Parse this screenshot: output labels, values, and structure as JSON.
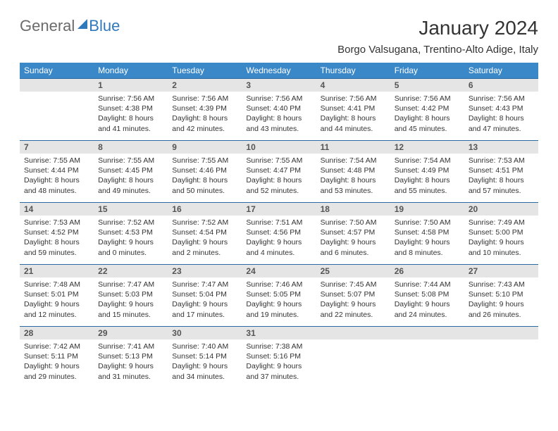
{
  "brand": {
    "part1": "General",
    "part2": "Blue"
  },
  "title": "January 2024",
  "location": "Borgo Valsugana, Trentino-Alto Adige, Italy",
  "colors": {
    "header_bg": "#3b88c9",
    "header_text": "#ffffff",
    "daynum_bg": "#e5e5e5",
    "row_border": "#2a6aa3",
    "brand_gray": "#6b6b6b",
    "brand_blue": "#2f79bd"
  },
  "weekdays": [
    "Sunday",
    "Monday",
    "Tuesday",
    "Wednesday",
    "Thursday",
    "Friday",
    "Saturday"
  ],
  "weeks": [
    [
      {
        "blank": true
      },
      {
        "n": "1",
        "sunrise": "Sunrise: 7:56 AM",
        "sunset": "Sunset: 4:38 PM",
        "dl1": "Daylight: 8 hours",
        "dl2": "and 41 minutes."
      },
      {
        "n": "2",
        "sunrise": "Sunrise: 7:56 AM",
        "sunset": "Sunset: 4:39 PM",
        "dl1": "Daylight: 8 hours",
        "dl2": "and 42 minutes."
      },
      {
        "n": "3",
        "sunrise": "Sunrise: 7:56 AM",
        "sunset": "Sunset: 4:40 PM",
        "dl1": "Daylight: 8 hours",
        "dl2": "and 43 minutes."
      },
      {
        "n": "4",
        "sunrise": "Sunrise: 7:56 AM",
        "sunset": "Sunset: 4:41 PM",
        "dl1": "Daylight: 8 hours",
        "dl2": "and 44 minutes."
      },
      {
        "n": "5",
        "sunrise": "Sunrise: 7:56 AM",
        "sunset": "Sunset: 4:42 PM",
        "dl1": "Daylight: 8 hours",
        "dl2": "and 45 minutes."
      },
      {
        "n": "6",
        "sunrise": "Sunrise: 7:56 AM",
        "sunset": "Sunset: 4:43 PM",
        "dl1": "Daylight: 8 hours",
        "dl2": "and 47 minutes."
      }
    ],
    [
      {
        "n": "7",
        "sunrise": "Sunrise: 7:55 AM",
        "sunset": "Sunset: 4:44 PM",
        "dl1": "Daylight: 8 hours",
        "dl2": "and 48 minutes."
      },
      {
        "n": "8",
        "sunrise": "Sunrise: 7:55 AM",
        "sunset": "Sunset: 4:45 PM",
        "dl1": "Daylight: 8 hours",
        "dl2": "and 49 minutes."
      },
      {
        "n": "9",
        "sunrise": "Sunrise: 7:55 AM",
        "sunset": "Sunset: 4:46 PM",
        "dl1": "Daylight: 8 hours",
        "dl2": "and 50 minutes."
      },
      {
        "n": "10",
        "sunrise": "Sunrise: 7:55 AM",
        "sunset": "Sunset: 4:47 PM",
        "dl1": "Daylight: 8 hours",
        "dl2": "and 52 minutes."
      },
      {
        "n": "11",
        "sunrise": "Sunrise: 7:54 AM",
        "sunset": "Sunset: 4:48 PM",
        "dl1": "Daylight: 8 hours",
        "dl2": "and 53 minutes."
      },
      {
        "n": "12",
        "sunrise": "Sunrise: 7:54 AM",
        "sunset": "Sunset: 4:49 PM",
        "dl1": "Daylight: 8 hours",
        "dl2": "and 55 minutes."
      },
      {
        "n": "13",
        "sunrise": "Sunrise: 7:53 AM",
        "sunset": "Sunset: 4:51 PM",
        "dl1": "Daylight: 8 hours",
        "dl2": "and 57 minutes."
      }
    ],
    [
      {
        "n": "14",
        "sunrise": "Sunrise: 7:53 AM",
        "sunset": "Sunset: 4:52 PM",
        "dl1": "Daylight: 8 hours",
        "dl2": "and 59 minutes."
      },
      {
        "n": "15",
        "sunrise": "Sunrise: 7:52 AM",
        "sunset": "Sunset: 4:53 PM",
        "dl1": "Daylight: 9 hours",
        "dl2": "and 0 minutes."
      },
      {
        "n": "16",
        "sunrise": "Sunrise: 7:52 AM",
        "sunset": "Sunset: 4:54 PM",
        "dl1": "Daylight: 9 hours",
        "dl2": "and 2 minutes."
      },
      {
        "n": "17",
        "sunrise": "Sunrise: 7:51 AM",
        "sunset": "Sunset: 4:56 PM",
        "dl1": "Daylight: 9 hours",
        "dl2": "and 4 minutes."
      },
      {
        "n": "18",
        "sunrise": "Sunrise: 7:50 AM",
        "sunset": "Sunset: 4:57 PM",
        "dl1": "Daylight: 9 hours",
        "dl2": "and 6 minutes."
      },
      {
        "n": "19",
        "sunrise": "Sunrise: 7:50 AM",
        "sunset": "Sunset: 4:58 PM",
        "dl1": "Daylight: 9 hours",
        "dl2": "and 8 minutes."
      },
      {
        "n": "20",
        "sunrise": "Sunrise: 7:49 AM",
        "sunset": "Sunset: 5:00 PM",
        "dl1": "Daylight: 9 hours",
        "dl2": "and 10 minutes."
      }
    ],
    [
      {
        "n": "21",
        "sunrise": "Sunrise: 7:48 AM",
        "sunset": "Sunset: 5:01 PM",
        "dl1": "Daylight: 9 hours",
        "dl2": "and 12 minutes."
      },
      {
        "n": "22",
        "sunrise": "Sunrise: 7:47 AM",
        "sunset": "Sunset: 5:03 PM",
        "dl1": "Daylight: 9 hours",
        "dl2": "and 15 minutes."
      },
      {
        "n": "23",
        "sunrise": "Sunrise: 7:47 AM",
        "sunset": "Sunset: 5:04 PM",
        "dl1": "Daylight: 9 hours",
        "dl2": "and 17 minutes."
      },
      {
        "n": "24",
        "sunrise": "Sunrise: 7:46 AM",
        "sunset": "Sunset: 5:05 PM",
        "dl1": "Daylight: 9 hours",
        "dl2": "and 19 minutes."
      },
      {
        "n": "25",
        "sunrise": "Sunrise: 7:45 AM",
        "sunset": "Sunset: 5:07 PM",
        "dl1": "Daylight: 9 hours",
        "dl2": "and 22 minutes."
      },
      {
        "n": "26",
        "sunrise": "Sunrise: 7:44 AM",
        "sunset": "Sunset: 5:08 PM",
        "dl1": "Daylight: 9 hours",
        "dl2": "and 24 minutes."
      },
      {
        "n": "27",
        "sunrise": "Sunrise: 7:43 AM",
        "sunset": "Sunset: 5:10 PM",
        "dl1": "Daylight: 9 hours",
        "dl2": "and 26 minutes."
      }
    ],
    [
      {
        "n": "28",
        "sunrise": "Sunrise: 7:42 AM",
        "sunset": "Sunset: 5:11 PM",
        "dl1": "Daylight: 9 hours",
        "dl2": "and 29 minutes."
      },
      {
        "n": "29",
        "sunrise": "Sunrise: 7:41 AM",
        "sunset": "Sunset: 5:13 PM",
        "dl1": "Daylight: 9 hours",
        "dl2": "and 31 minutes."
      },
      {
        "n": "30",
        "sunrise": "Sunrise: 7:40 AM",
        "sunset": "Sunset: 5:14 PM",
        "dl1": "Daylight: 9 hours",
        "dl2": "and 34 minutes."
      },
      {
        "n": "31",
        "sunrise": "Sunrise: 7:38 AM",
        "sunset": "Sunset: 5:16 PM",
        "dl1": "Daylight: 9 hours",
        "dl2": "and 37 minutes."
      },
      {
        "blank": true
      },
      {
        "blank": true
      },
      {
        "blank": true
      }
    ]
  ]
}
